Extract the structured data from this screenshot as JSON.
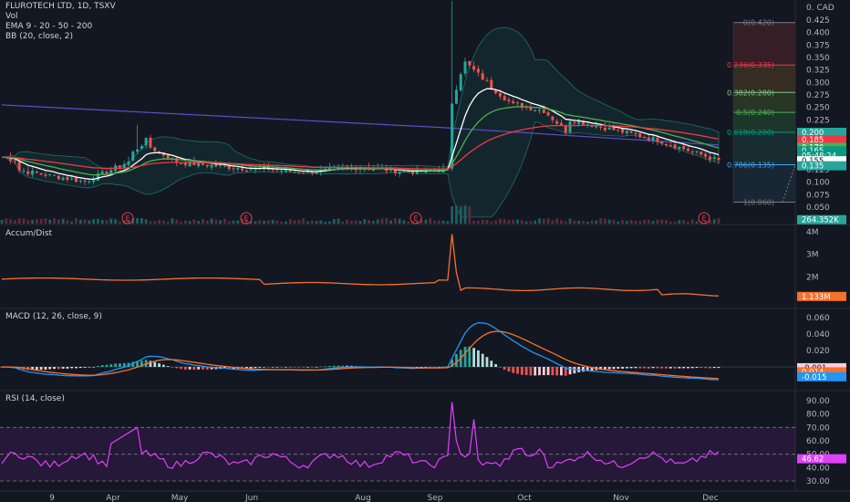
{
  "header": {
    "symbol_line": "FLUROTECH LTD, 1D, TSXV",
    "vol": "Vol",
    "ema": "EMA 9 - 20 - 50 - 200",
    "bb": "BB (20, close, 2)"
  },
  "price_axis": {
    "currency": "0. CAD",
    "ticks": [
      "0.425",
      "0.400",
      "0.375",
      "0.350",
      "0.325",
      "0.300",
      "0.275",
      "0.250",
      "0.225",
      "0.200",
      "0.175",
      "0.150",
      "0.125",
      "0.100",
      "0.075",
      "0.050",
      "0.025"
    ],
    "tags": [
      {
        "text": "0.200",
        "color": "#26a69a",
        "val": 0.2
      },
      {
        "text": "0.185",
        "color": "#f23645",
        "val": 0.185
      },
      {
        "text": "0.170",
        "color": "#4caf50",
        "val": 0.17
      },
      {
        "text": "0.165",
        "color": "#089981",
        "val": 0.163
      },
      {
        "text": "05:48:24",
        "color": "#089981",
        "val": 0.153
      },
      {
        "text": "0.155",
        "color": "#ffffff",
        "val": 0.143
      },
      {
        "text": "0.135",
        "color": "#26a69a",
        "val": 0.133
      },
      {
        "text": "264.352K",
        "color": "#26a69a",
        "val": 0.025
      }
    ]
  },
  "fib_levels": [
    {
      "label": "0(0.420)",
      "val": 0.42,
      "color": "#787b86"
    },
    {
      "label": "0.236(0.335)",
      "val": 0.335,
      "color": "#f23645"
    },
    {
      "label": "0.382(0.280)",
      "val": 0.28,
      "color": "#81c784"
    },
    {
      "label": "0.5(0.240)",
      "val": 0.24,
      "color": "#4caf50"
    },
    {
      "label": "0.618(0.200)",
      "val": 0.2,
      "color": "#089981"
    },
    {
      "label": "0.786(0.135)",
      "val": 0.135,
      "color": "#42a5f5"
    },
    {
      "label": "1(0.060)",
      "val": 0.06,
      "color": "#787b86"
    }
  ],
  "earnings_markers": [
    "E",
    "E",
    "E",
    "E"
  ],
  "accum": {
    "title": "Accum/Dist",
    "ticks": [
      "4M",
      "3M",
      "2M"
    ],
    "tag": "1.133M",
    "tag_color": "#f7712b"
  },
  "macd": {
    "title": "MACD (12, 26, close, 9)",
    "ticks": [
      "0.060",
      "0.040",
      "0.020",
      "0.000"
    ],
    "tags": [
      {
        "text": "-0.001",
        "color": "#ffcdd2",
        "val": -0.001
      },
      {
        "text": "0.014",
        "color": "#f7712b",
        "val": -0.006
      },
      {
        "text": "-0.015",
        "color": "#2196f3",
        "val": -0.012
      }
    ]
  },
  "rsi": {
    "title": "RSI (14, close)",
    "ticks": [
      "90.00",
      "80.00",
      "70.00",
      "60.00",
      "50.00",
      "40.00",
      "30.00"
    ],
    "tag": "46.62",
    "tag_color": "#e040fb"
  },
  "time_axis": {
    "labels": [
      "9",
      "Apr",
      "May",
      "Jun",
      "Aug",
      "Sep",
      "Oct",
      "Nov",
      "Dec"
    ]
  },
  "colors": {
    "up": "#26a69a",
    "down": "#ef5350",
    "ema9": "#ffffff",
    "ema20": "#4caf50",
    "ema50": "#f23645",
    "ema200": "#5b4fc9",
    "bb": "#1e6d66",
    "accum": "#f7712b",
    "macd": "#2196f3",
    "signal": "#f7712b",
    "rsi": "#e040fb"
  }
}
